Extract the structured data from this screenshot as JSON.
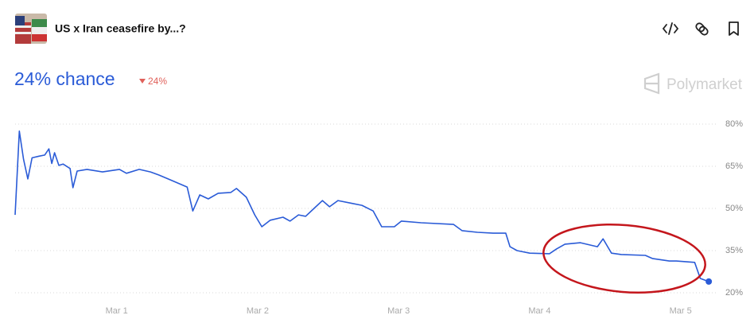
{
  "header": {
    "title": "US x Iran ceasefire by...?"
  },
  "chart_data": {
    "type": "line",
    "headline": "24% chance",
    "change": "24%",
    "brand": "Polymarket",
    "color": "#2a5bd7",
    "grid": true,
    "x": [
      0.28,
      0.31,
      0.34,
      0.37,
      0.4,
      0.45,
      0.49,
      0.52,
      0.54,
      0.56,
      0.59,
      0.62,
      0.67,
      0.69,
      0.72,
      0.79,
      0.9,
      1.02,
      1.07,
      1.16,
      1.24,
      1.3,
      1.38,
      1.5,
      1.54,
      1.59,
      1.65,
      1.72,
      1.81,
      1.85,
      1.92,
      1.98,
      2.03,
      2.09,
      2.18,
      2.23,
      2.29,
      2.34,
      2.4,
      2.46,
      2.51,
      2.57,
      2.66,
      2.74,
      2.82,
      2.88,
      2.97,
      3.02,
      3.16,
      3.39,
      3.45,
      3.56,
      3.67,
      3.76,
      3.79,
      3.84,
      3.93,
      4.07,
      4.12,
      4.18,
      4.29,
      4.41,
      4.45,
      4.51,
      4.58,
      4.75,
      4.8,
      4.92,
      4.97,
      5.1,
      5.14,
      5.2
    ],
    "values": [
      47.7,
      77.5,
      67.5,
      60.5,
      68,
      68.6,
      69,
      71.2,
      66,
      69.8,
      65.3,
      65.8,
      64.2,
      57.4,
      63.3,
      63.9,
      63,
      63.9,
      62.5,
      63.9,
      63,
      61.9,
      60.2,
      57.6,
      49.1,
      54.8,
      53.4,
      55.4,
      55.7,
      57.1,
      54,
      47.7,
      43.5,
      45.8,
      46.9,
      45.5,
      47.7,
      47.2,
      50,
      52.8,
      50.6,
      52.8,
      51.9,
      51.1,
      49.1,
      43.5,
      43.5,
      45.5,
      44.9,
      44.3,
      42.1,
      41.5,
      41.2,
      41.2,
      36.4,
      35,
      34.1,
      33.9,
      35.6,
      37.3,
      37.8,
      36.4,
      39.2,
      34.1,
      33.6,
      33.3,
      32.2,
      31.3,
      31.3,
      30.8,
      25.1,
      24
    ],
    "xlim": [
      0.28,
      5.25
    ],
    "xticks": [
      {
        "value": 1,
        "label": "Mar 1"
      },
      {
        "value": 2,
        "label": "Mar 2"
      },
      {
        "value": 3,
        "label": "Mar 3"
      },
      {
        "value": 4,
        "label": "Mar 4"
      },
      {
        "value": 5,
        "label": "Mar 5"
      }
    ],
    "ylim": [
      20,
      80
    ],
    "yticks": [
      {
        "value": 80,
        "label": "80%"
      },
      {
        "value": 65,
        "label": "65%"
      },
      {
        "value": 50,
        "label": "50%"
      },
      {
        "value": 35,
        "label": "35%"
      },
      {
        "value": 20,
        "label": "20%"
      }
    ]
  }
}
